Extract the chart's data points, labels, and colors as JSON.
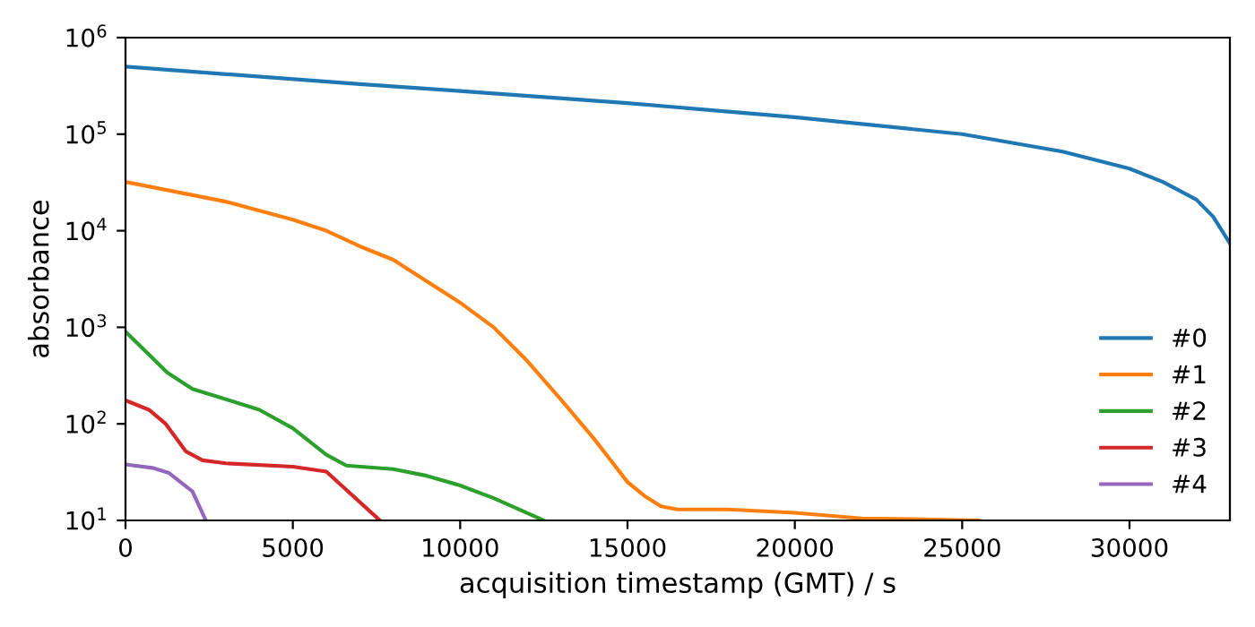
{
  "chart_data": {
    "type": "line",
    "xlabel": "acquisition timestamp (GMT) / s",
    "ylabel": "absorbance",
    "log": "y",
    "xlim": [
      0,
      33000
    ],
    "xticks": [
      0,
      5000,
      10000,
      15000,
      20000,
      25000,
      30000
    ],
    "ylim": [
      10,
      1000000
    ],
    "yticks": [
      {
        "value": 10,
        "label": "10$^{1}$"
      },
      {
        "value": 100,
        "label": "10$^{2}$"
      },
      {
        "value": 1000,
        "label": "10$^{3}$"
      },
      {
        "value": 10000,
        "label": "10$^{4}$"
      },
      {
        "value": 100000,
        "label": "10$^{5}$"
      },
      {
        "value": 1000000,
        "label": "10$^{6}$"
      }
    ],
    "legend": "lower right",
    "grid": false,
    "series": [
      {
        "name": "#0",
        "color": "#1f77b4",
        "x": [
          0,
          7000,
          10000,
          15000,
          20000,
          25000,
          28000,
          30000,
          31000,
          32000,
          32500,
          33000
        ],
        "values": [
          500000,
          330000,
          280000,
          210000,
          150000,
          100000,
          66000,
          44000,
          32000,
          21000,
          14000,
          7400
        ]
      },
      {
        "name": "#1",
        "color": "#ff7f0e",
        "x": [
          0,
          3000,
          5000,
          6000,
          7000,
          8000,
          9000,
          10000,
          11000,
          12000,
          13000,
          14000,
          15000,
          15500,
          16000,
          16500,
          18000,
          20000,
          22000,
          25500
        ],
        "values": [
          32000,
          20000,
          13000,
          10000,
          6900,
          5000,
          3000,
          1800,
          1000,
          450,
          180,
          70,
          25,
          18,
          14,
          13,
          13,
          12,
          10.5,
          10
        ]
      },
      {
        "name": "#2",
        "color": "#2ca02c",
        "x": [
          0,
          1250,
          2000,
          3000,
          4000,
          5000,
          6000,
          6600,
          8000,
          9000,
          10000,
          11000,
          12500
        ],
        "values": [
          900,
          340,
          230,
          180,
          140,
          90,
          48,
          37,
          34,
          29,
          23,
          17,
          10
        ]
      },
      {
        "name": "#3",
        "color": "#d62728",
        "x": [
          0,
          700,
          1200,
          1800,
          2300,
          3000,
          5000,
          6000,
          7600
        ],
        "values": [
          175,
          140,
          100,
          52,
          42,
          39,
          36,
          32,
          10
        ]
      },
      {
        "name": "#4",
        "color": "#9467bd",
        "x": [
          0,
          800,
          1300,
          2000,
          2400
        ],
        "values": [
          38,
          35,
          31,
          20,
          10
        ]
      }
    ]
  }
}
